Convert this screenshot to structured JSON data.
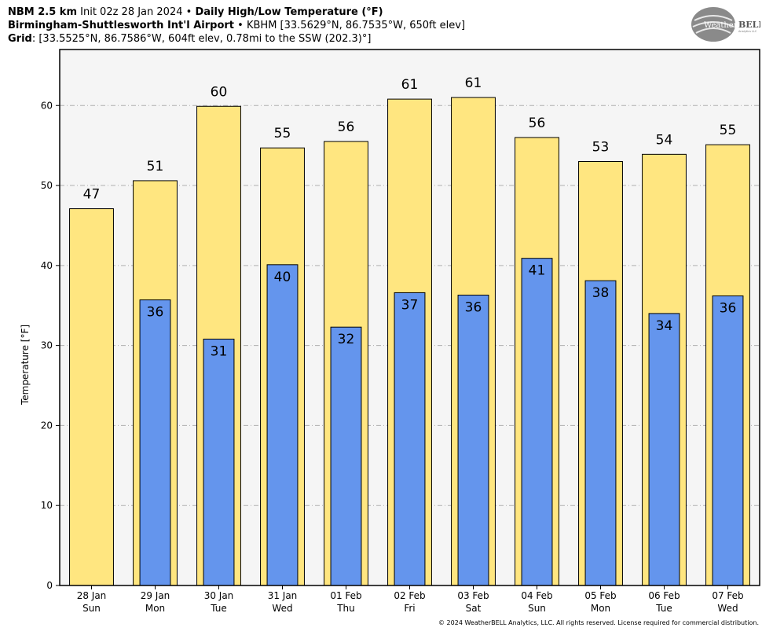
{
  "header": {
    "line1_bold1": "NBM 2.5 km",
    "line1_init": "Init 02z 28 Jan 2024",
    "line1_sep": "•",
    "line1_bold2": "Daily High/Low Temperature (°F)",
    "line2_bold": "Birmingham-Shuttlesworth Int'l Airport",
    "line2_sep": "•",
    "line2_rest": "KBHM [33.5629°N, 86.7535°W, 650ft elev]",
    "line3_bold": "Grid",
    "line3_rest": ": [33.5525°N, 86.7586°W, 604ft elev, 0.78mi to the SSW (202.3)°]"
  },
  "logo": {
    "text_w": "Weather",
    "text_b": "BELL",
    "sub": "Analytics LLC"
  },
  "copyright": "© 2024 WeatherBELL Analytics, LLC. All rights reserved. License required for commercial distribution.",
  "chart_data": {
    "type": "bar",
    "ylabel": "Temperature [°F]",
    "ylim": [
      0,
      67
    ],
    "yticks": [
      0,
      10,
      20,
      30,
      40,
      50,
      60
    ],
    "grid": true,
    "categories": [
      {
        "date": "28 Jan",
        "day": "Sun"
      },
      {
        "date": "29 Jan",
        "day": "Mon"
      },
      {
        "date": "30 Jan",
        "day": "Tue"
      },
      {
        "date": "31 Jan",
        "day": "Wed"
      },
      {
        "date": "01 Feb",
        "day": "Thu"
      },
      {
        "date": "02 Feb",
        "day": "Fri"
      },
      {
        "date": "03 Feb",
        "day": "Sat"
      },
      {
        "date": "04 Feb",
        "day": "Sun"
      },
      {
        "date": "05 Feb",
        "day": "Mon"
      },
      {
        "date": "06 Feb",
        "day": "Tue"
      },
      {
        "date": "07 Feb",
        "day": "Wed"
      }
    ],
    "highs": [
      47.1,
      50.6,
      59.9,
      54.7,
      55.5,
      60.8,
      61.0,
      56.0,
      53.0,
      53.9,
      55.1
    ],
    "high_labels": [
      "47",
      "51",
      "60",
      "55",
      "56",
      "61",
      "61",
      "56",
      "53",
      "54",
      "55"
    ],
    "lows": [
      null,
      35.7,
      30.8,
      40.1,
      32.3,
      36.6,
      36.3,
      40.9,
      38.1,
      34.0,
      36.2
    ],
    "low_labels": [
      "",
      "36",
      "31",
      "40",
      "32",
      "37",
      "36",
      "41",
      "38",
      "34",
      "36"
    ],
    "colors": {
      "high": "#ffe680",
      "low": "#6495ed",
      "plot_bg": "#f5f5f5",
      "grid": "#b0b0b0"
    }
  }
}
